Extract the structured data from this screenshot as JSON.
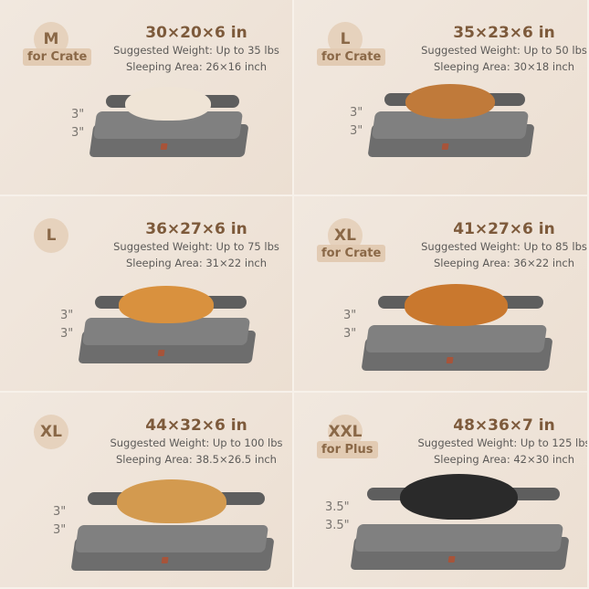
{
  "sizes": [
    {
      "badge": "M",
      "tag": "for Crate",
      "dimensions": "30×20×6 in",
      "weight": "Suggested Weight: Up to 35 lbs",
      "area": "Sleeping Area: 26×16 inch",
      "heights": [
        "3\"",
        "3\""
      ],
      "dog_color": "#efe4d6"
    },
    {
      "badge": "L",
      "tag": "for Crate",
      "dimensions": "35×23×6 in",
      "weight": "Suggested Weight: Up to 50 lbs",
      "area": "Sleeping Area: 30×18 inch",
      "heights": [
        "3\"",
        "3\""
      ],
      "dog_color": "#c07a3a"
    },
    {
      "badge": "L",
      "tag": "",
      "dimensions": "36×27×6 in",
      "weight": "Suggested Weight: Up to 75 lbs",
      "area": "Sleeping Area: 31×22 inch",
      "heights": [
        "3\"",
        "3\""
      ],
      "dog_color": "#d9913e"
    },
    {
      "badge": "XL",
      "tag": "for Crate",
      "dimensions": "41×27×6 in",
      "weight": "Suggested Weight: Up to 85 lbs",
      "area": "Sleeping Area: 36×22 inch",
      "heights": [
        "3\"",
        "3\""
      ],
      "dog_color": "#c9782e"
    },
    {
      "badge": "XL",
      "tag": "",
      "dimensions": "44×32×6 in",
      "weight": "Suggested Weight: Up to 100 lbs",
      "area": "Sleeping Area: 38.5×26.5 inch",
      "heights": [
        "3\"",
        "3\""
      ],
      "dog_color": "#d39a4f"
    },
    {
      "badge": "XXL",
      "tag": "for Plus",
      "dimensions": "48×36×7 in",
      "weight": "Suggested Weight: Up to 125 lbs",
      "area": "Sleeping Area: 42×30 inch",
      "heights": [
        "3.5\"",
        "3.5\""
      ],
      "dog_color": "#2a2a2a"
    }
  ]
}
